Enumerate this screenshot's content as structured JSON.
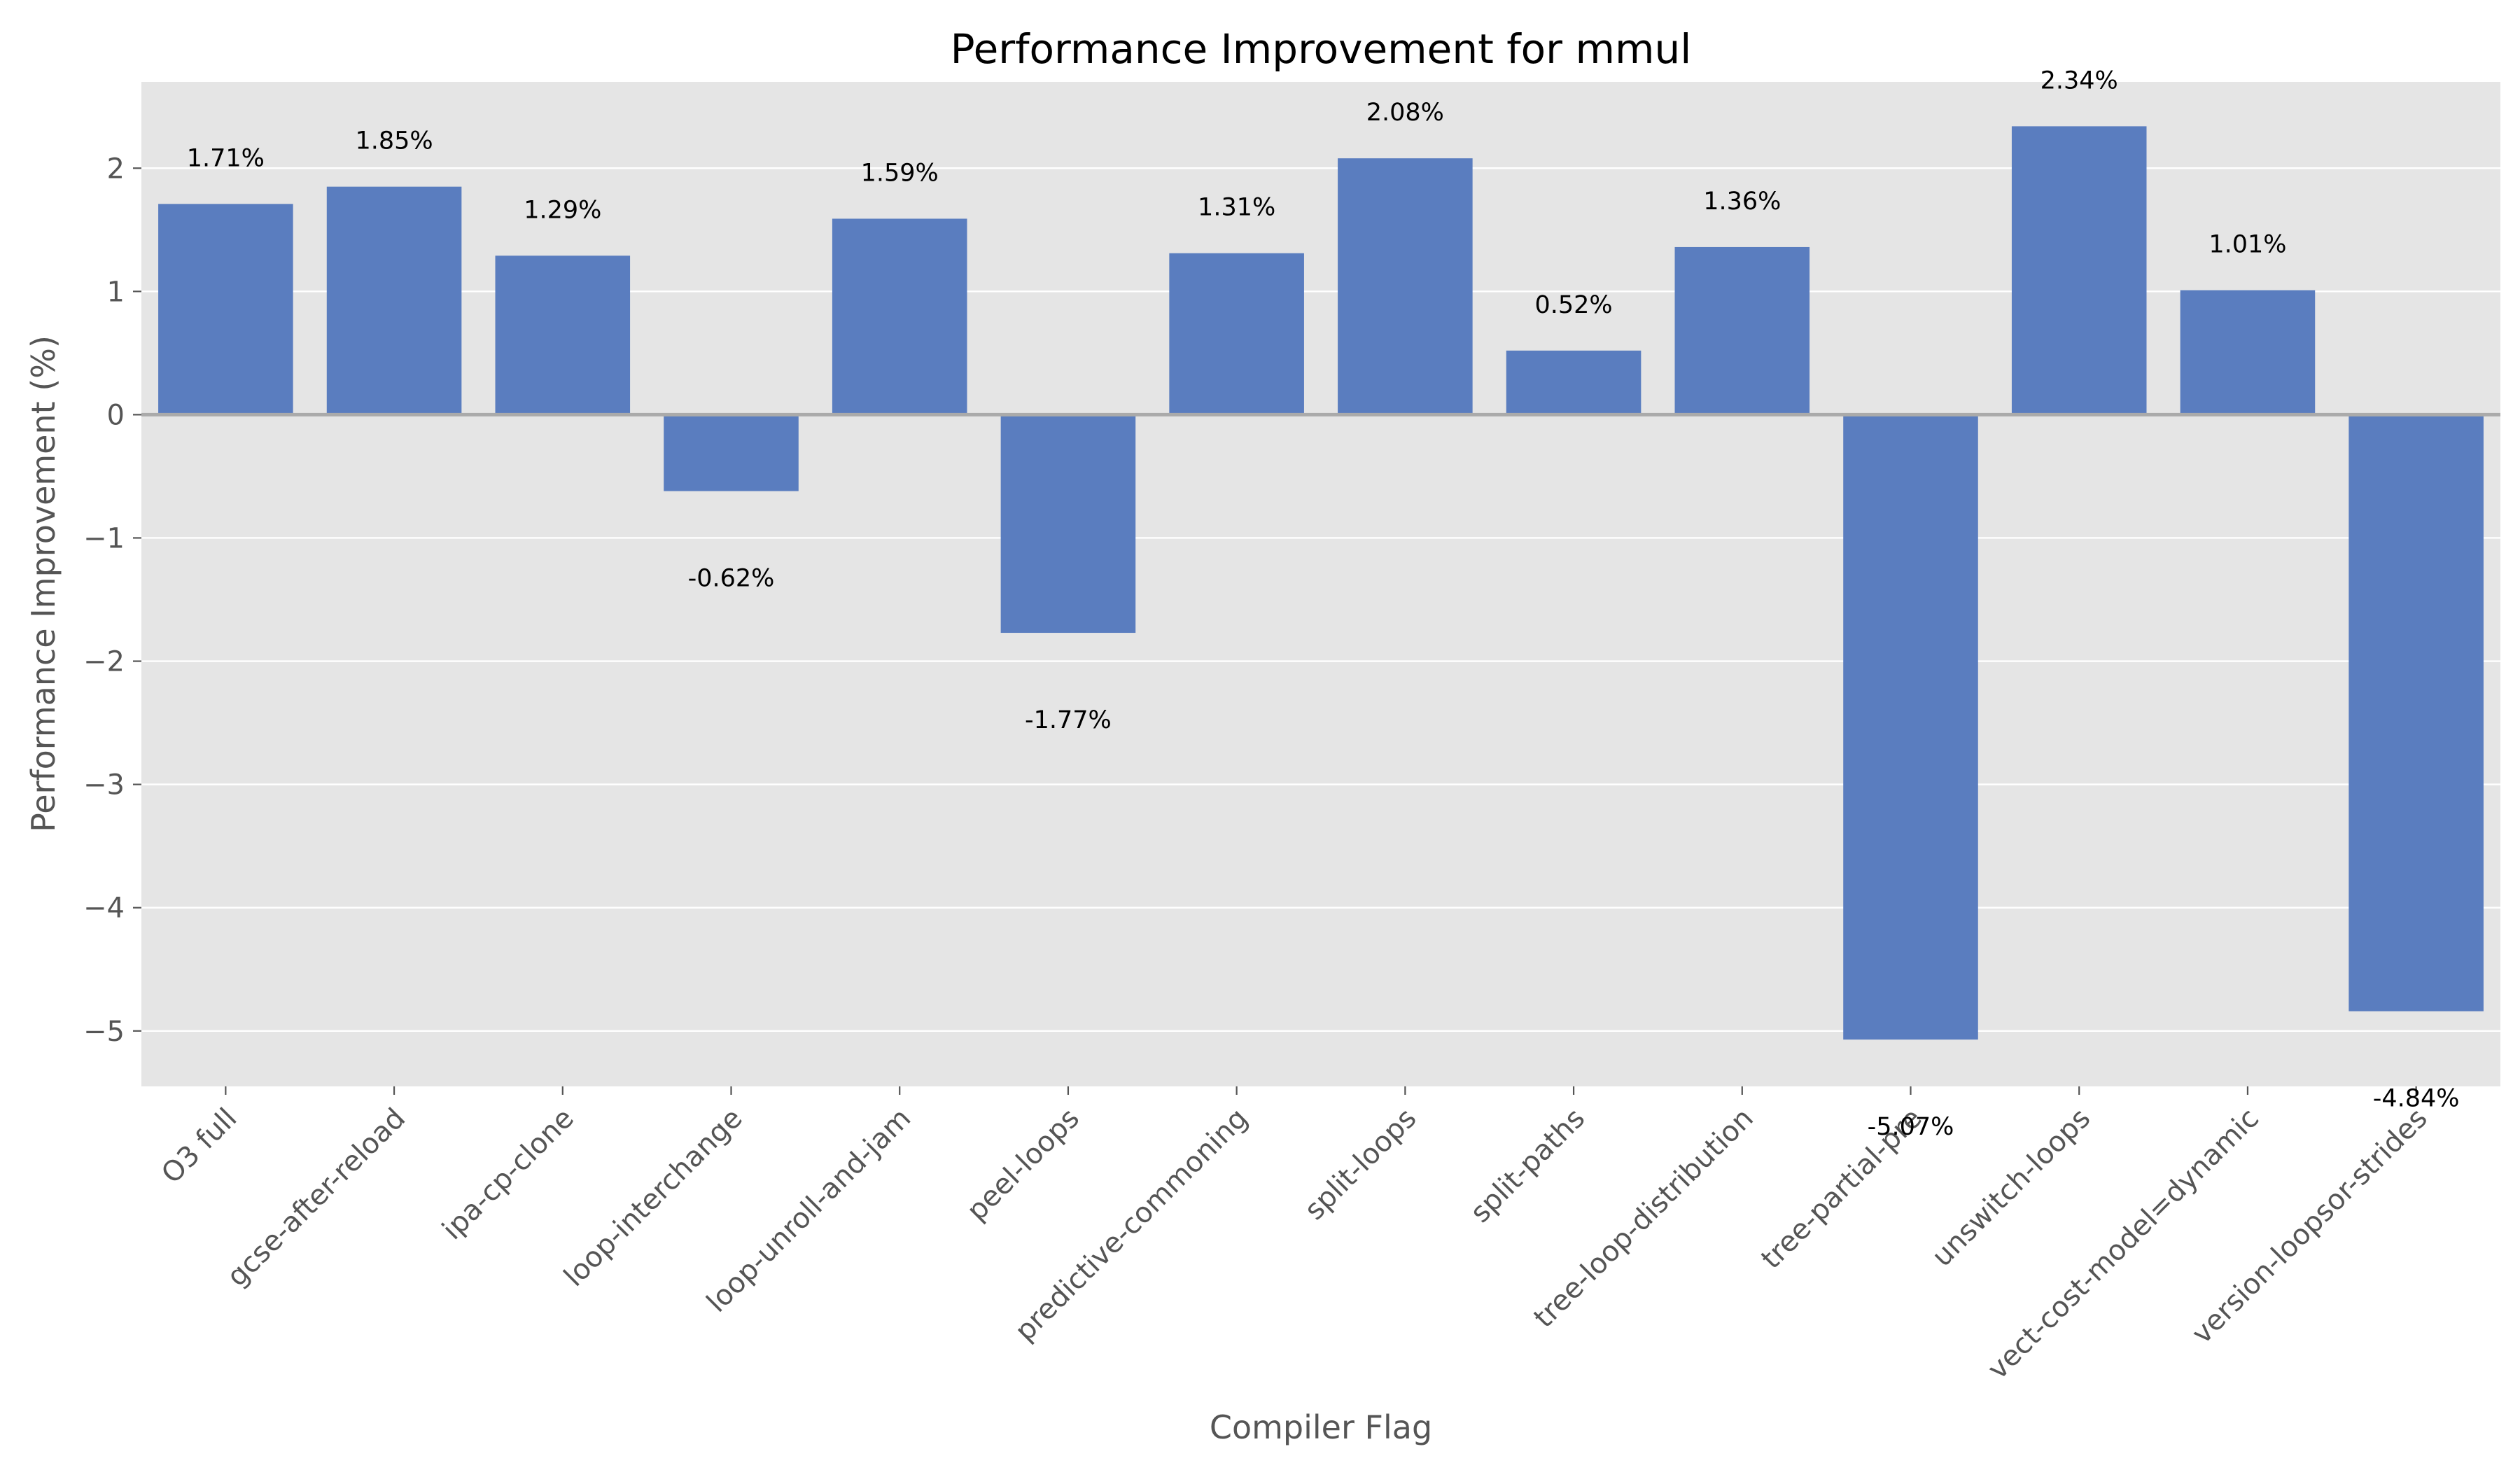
{
  "chart_data": {
    "type": "bar",
    "title": "Performance Improvement for mmul",
    "xlabel": "Compiler Flag",
    "ylabel": "Performance Improvement (%)",
    "ylim": [
      -5.45,
      2.7
    ],
    "yticks": [
      2,
      1,
      0,
      -1,
      -2,
      -3,
      -4,
      -5
    ],
    "ytick_labels": [
      "2",
      "1",
      "0",
      "−1",
      "−2",
      "−3",
      "−4",
      "−5"
    ],
    "grid": true,
    "categories": [
      "O3 full",
      "gcse-after-reload",
      "ipa-cp-clone",
      "loop-interchange",
      "loop-unroll-and-jam",
      "peel-loops",
      "predictive-commoning",
      "split-loops",
      "split-paths",
      "tree-loop-distribution",
      "tree-partial-pre",
      "unswitch-loops",
      "vect-cost-model=dynamic",
      "version-loopsor-strides"
    ],
    "values": [
      1.71,
      1.85,
      1.29,
      -0.62,
      1.59,
      -1.77,
      1.31,
      2.08,
      0.52,
      1.36,
      -5.07,
      2.34,
      1.01,
      -4.84
    ],
    "value_labels": [
      "1.71%",
      "1.85%",
      "1.29%",
      "-0.62%",
      "1.59%",
      "-1.77%",
      "1.31%",
      "2.08%",
      "0.52%",
      "1.36%",
      "-5.07%",
      "2.34%",
      "1.01%",
      "-4.84%"
    ],
    "colors": {
      "bar": "#5a7dbf",
      "plot_background": "#e5e5e5",
      "zero_line": "#aaaaaa"
    }
  }
}
